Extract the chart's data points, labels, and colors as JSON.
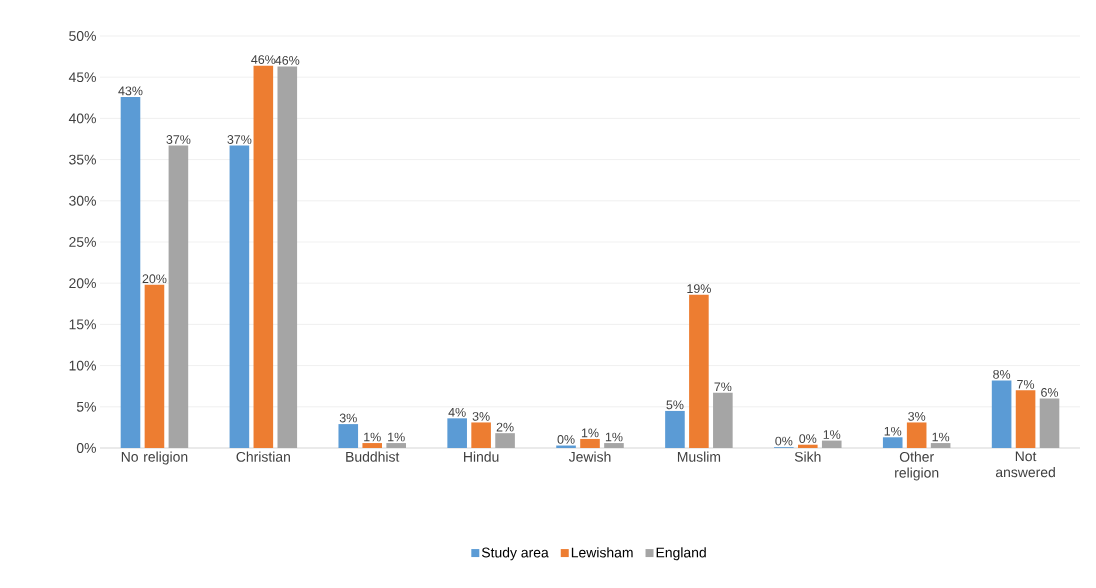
{
  "chart_data": {
    "type": "bar",
    "categories": [
      "No religion",
      "Christian",
      "Buddhist",
      "Hindu",
      "Jewish",
      "Muslim",
      "Sikh",
      "Other religion",
      "Not answered"
    ],
    "series": [
      {
        "name": "Study area",
        "color": "#5b9bd5",
        "values": [
          42.6,
          36.7,
          2.9,
          3.6,
          0.3,
          4.5,
          0.1,
          1.3,
          8.2
        ],
        "value_labels": [
          "43%",
          "37%",
          "3%",
          "4%",
          "0%",
          "5%",
          "0%",
          "1%",
          "8%"
        ]
      },
      {
        "name": "Lewisham",
        "color": "#ed7d31",
        "values": [
          19.8,
          46.4,
          0.6,
          3.1,
          1.1,
          18.6,
          0.4,
          3.1,
          7.0
        ],
        "value_labels": [
          "20%",
          "46%",
          "1%",
          "3%",
          "1%",
          "19%",
          "0%",
          "3%",
          "7%"
        ]
      },
      {
        "name": "England",
        "color": "#a5a5a5",
        "values": [
          36.7,
          46.3,
          0.6,
          1.8,
          0.6,
          6.7,
          0.9,
          0.6,
          6.0
        ],
        "value_labels": [
          "37%",
          "46%",
          "1%",
          "2%",
          "1%",
          "7%",
          "1%",
          "1%",
          "6%"
        ]
      }
    ],
    "ylim": [
      0,
      50
    ],
    "yticks": [
      {
        "value": 0,
        "label": "0%"
      },
      {
        "value": 5,
        "label": "5%"
      },
      {
        "value": 10,
        "label": "10%"
      },
      {
        "value": 15,
        "label": "15%"
      },
      {
        "value": 20,
        "label": "20%"
      },
      {
        "value": 25,
        "label": "25%"
      },
      {
        "value": 30,
        "label": "30%"
      },
      {
        "value": 35,
        "label": "35%"
      },
      {
        "value": 40,
        "label": "40%"
      },
      {
        "value": 45,
        "label": "45%"
      },
      {
        "value": 50,
        "label": "50%"
      }
    ],
    "grid": "y",
    "legend": "bottom"
  }
}
